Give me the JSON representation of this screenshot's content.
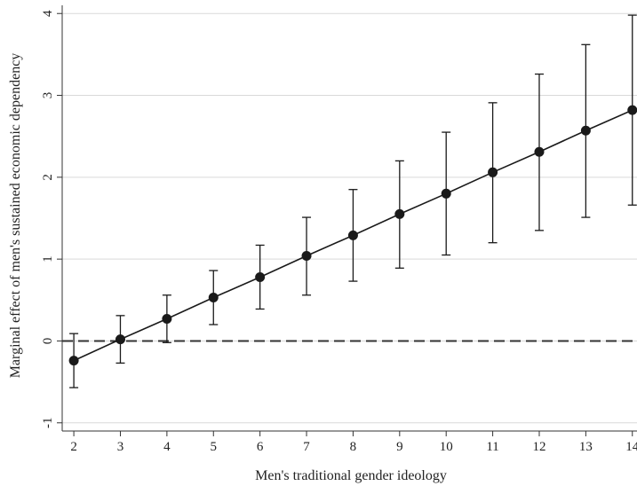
{
  "chart_data": {
    "type": "scatter",
    "title": "",
    "xlabel": "Men's traditional gender ideology",
    "ylabel": "Marginal effect of men's sustained economic dependency",
    "x": [
      2,
      3,
      4,
      5,
      6,
      7,
      8,
      9,
      10,
      11,
      12,
      13,
      14
    ],
    "series": [
      {
        "values": [
          -0.24,
          0.02,
          0.27,
          0.53,
          0.78,
          1.04,
          1.29,
          1.55,
          1.8,
          2.06,
          2.31,
          2.57,
          2.82
        ],
        "ci_lower": [
          -0.57,
          -0.27,
          -0.02,
          0.2,
          0.39,
          0.56,
          0.73,
          0.89,
          1.05,
          1.2,
          1.35,
          1.51,
          1.66
        ],
        "ci_upper": [
          0.09,
          0.31,
          0.56,
          0.86,
          1.17,
          1.51,
          1.85,
          2.2,
          2.55,
          2.91,
          3.26,
          3.62,
          3.98
        ]
      }
    ],
    "reference_line": {
      "y": 0,
      "style": "dashed"
    },
    "xticks": [
      "2",
      "3",
      "4",
      "5",
      "6",
      "7",
      "8",
      "9",
      "10",
      "11",
      "12",
      "13",
      "14"
    ],
    "yticks": [
      "-1",
      "0",
      "1",
      "2",
      "3",
      "4"
    ],
    "xlim": [
      1.75,
      14.1
    ],
    "ylim": [
      -1.1,
      4.1
    ],
    "grid": "horizontal",
    "colors": {
      "marker": "#1a1a1a",
      "line": "#1a1a1a",
      "grid": "#d9d9d9",
      "axis": "#333333"
    }
  }
}
